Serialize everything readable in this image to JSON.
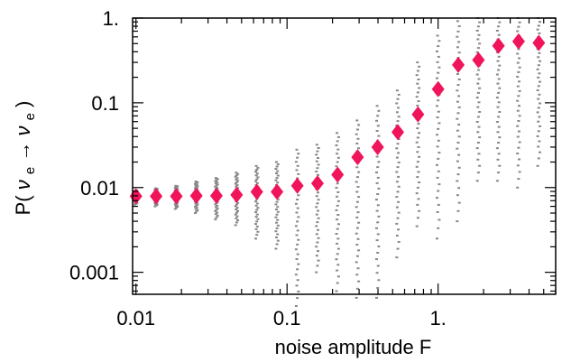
{
  "chart_data": {
    "type": "scatter",
    "xlabel": "noise amplitude F",
    "ylabel_parts": [
      "P(",
      "ν",
      "e",
      "→",
      "ν",
      "e",
      ")"
    ],
    "xscale": "log",
    "yscale": "log",
    "xlim": [
      0.0095,
      6.0
    ],
    "ylim": [
      0.00055,
      1.0
    ],
    "x_ticks": [
      {
        "value": 0.01,
        "label": "0.01"
      },
      {
        "value": 0.1,
        "label": "0.1"
      },
      {
        "value": 1,
        "label": "1."
      }
    ],
    "y_ticks": [
      {
        "value": 0.001,
        "label": "0.001"
      },
      {
        "value": 0.01,
        "label": "0.01"
      },
      {
        "value": 0.1,
        "label": "0.1"
      },
      {
        "value": 1,
        "label": "1."
      }
    ],
    "series": [
      {
        "kind": "mean",
        "marker": "diamond",
        "color": "#f0145a",
        "x": [
          0.01,
          0.0136,
          0.0185,
          0.0251,
          0.0341,
          0.0464,
          0.0631,
          0.0858,
          0.117,
          0.159,
          0.216,
          0.293,
          0.398,
          0.541,
          0.736,
          1.0,
          1.36,
          1.85,
          2.51,
          3.41,
          4.64
        ],
        "y": [
          0.0079,
          0.0079,
          0.0079,
          0.008,
          0.008,
          0.0082,
          0.0089,
          0.0089,
          0.0105,
          0.0112,
          0.0142,
          0.0228,
          0.03,
          0.045,
          0.073,
          0.145,
          0.28,
          0.32,
          0.47,
          0.53,
          0.51
        ]
      },
      {
        "kind": "samples",
        "marker": "dot",
        "color": "#888888",
        "x": [
          0.01,
          0.0136,
          0.0185,
          0.0251,
          0.0341,
          0.0464,
          0.0631,
          0.0858,
          0.117,
          0.159,
          0.216,
          0.293,
          0.398,
          0.541,
          0.736,
          1.0,
          1.36,
          1.85,
          2.51,
          3.41,
          4.64
        ],
        "ymin": [
          0.0063,
          0.006,
          0.0056,
          0.005,
          0.0042,
          0.0036,
          0.0025,
          0.0019,
          0.0004,
          0.001,
          0.0006,
          0.0005,
          0.0005,
          0.0015,
          0.0035,
          0.0025,
          0.004,
          0.012,
          0.012,
          0.01,
          0.018
        ],
        "ymax": [
          0.0093,
          0.0098,
          0.0105,
          0.0118,
          0.013,
          0.015,
          0.018,
          0.02,
          0.028,
          0.032,
          0.044,
          0.062,
          0.092,
          0.14,
          0.3,
          0.62,
          0.92,
          1.0,
          1.0,
          1.0,
          1.0
        ]
      }
    ],
    "grid": false
  }
}
